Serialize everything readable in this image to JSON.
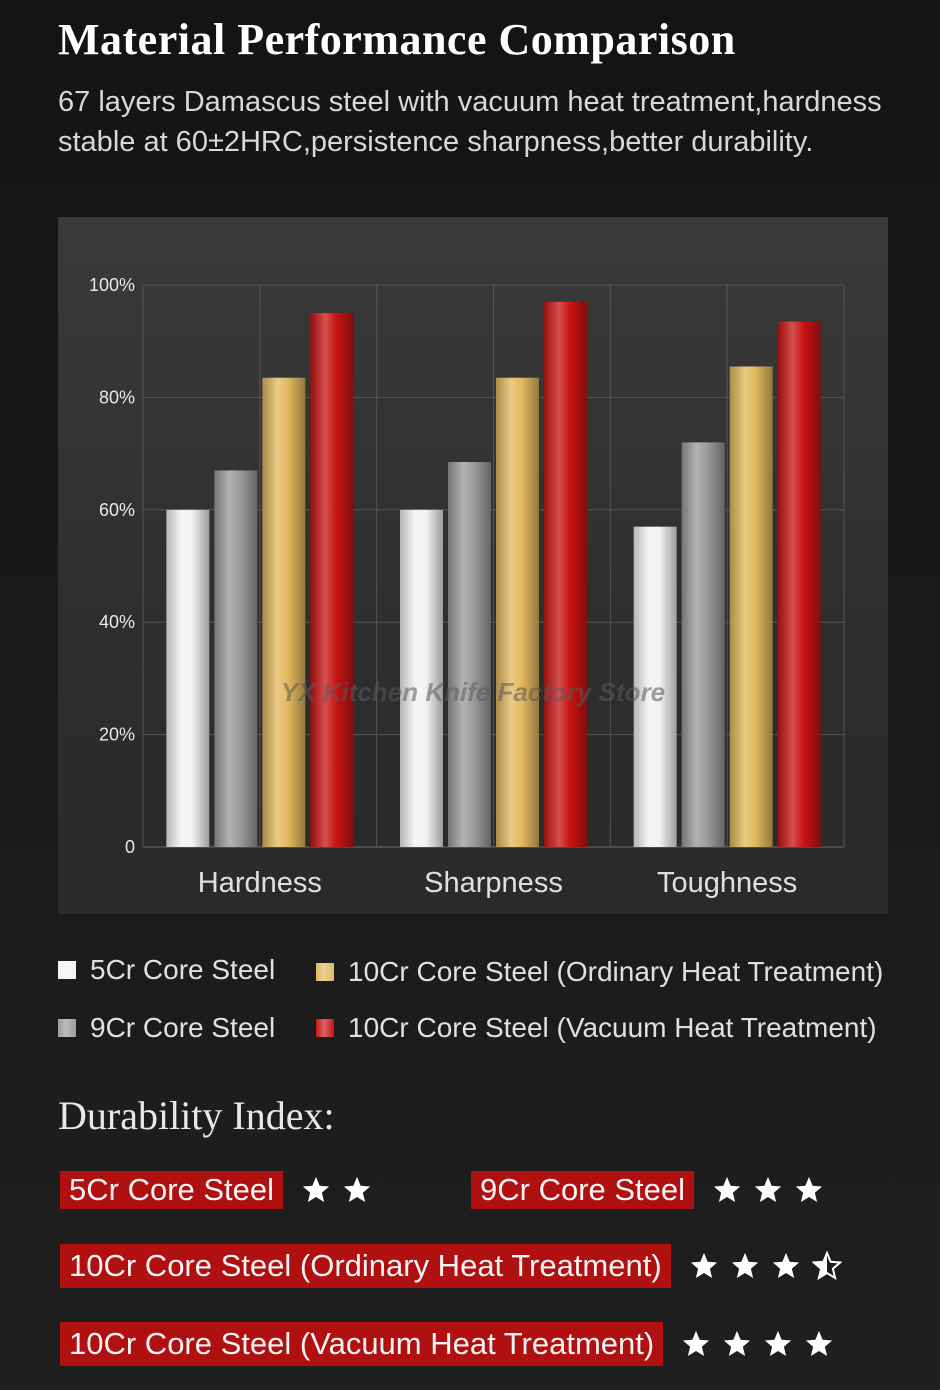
{
  "header": {
    "title": "Material Performance Comparison",
    "subtitle_line1": "67 layers Damascus steel with vacuum heat treatment,hardness",
    "subtitle_line2": "stable at 60±2HRC,persistence sharpness,better durability."
  },
  "chart_data": {
    "type": "bar",
    "title": "",
    "xlabel": "",
    "ylabel": "",
    "categories": [
      "Hardness",
      "Sharpness",
      "Toughness"
    ],
    "ylim": [
      0,
      100
    ],
    "yticks": [
      0,
      20,
      40,
      60,
      80,
      100
    ],
    "ytick_labels": [
      "0",
      "20%",
      "40%",
      "60%",
      "80%",
      "100%"
    ],
    "grid": true,
    "series": [
      {
        "name": "5Cr Core Steel",
        "color": "#f2f2f2",
        "values": [
          60,
          60,
          57
        ]
      },
      {
        "name": "9Cr Core Steel",
        "color": "#9a9a9a",
        "values": [
          67,
          68.5,
          72
        ]
      },
      {
        "name": "10Cr Core Steel (Ordinary Heat Treatment)",
        "color": "#e1b85e",
        "values": [
          83.5,
          83.5,
          85.5
        ]
      },
      {
        "name": "10Cr Core Steel (Vacuum Heat Treatment)",
        "color": "#c81414",
        "values": [
          95,
          97,
          93.5
        ]
      }
    ],
    "watermark": "YX Kitchen Knife Factory Store"
  },
  "legend": {
    "items": [
      {
        "label": "5Cr Core Steel",
        "color": "#f2f2f2"
      },
      {
        "label": "10Cr Core Steel (Ordinary Heat Treatment)",
        "color": "#e1b85e"
      },
      {
        "label": "9Cr Core Steel",
        "color": "#9a9a9a"
      },
      {
        "label": "10Cr Core Steel (Vacuum Heat Treatment)",
        "color": "#c81414"
      }
    ]
  },
  "durability": {
    "title": "Durability  Index:",
    "rows": [
      {
        "label": "5Cr Core Steel",
        "stars": 2
      },
      {
        "label": "9Cr Core Steel",
        "stars": 3
      },
      {
        "label": "10Cr  Core Steel (Ordinary Heat Treatment)",
        "stars": 3.5
      },
      {
        "label": "10Cr  Core Steel (Vacuum Heat Treatment)",
        "stars": 4
      }
    ]
  }
}
